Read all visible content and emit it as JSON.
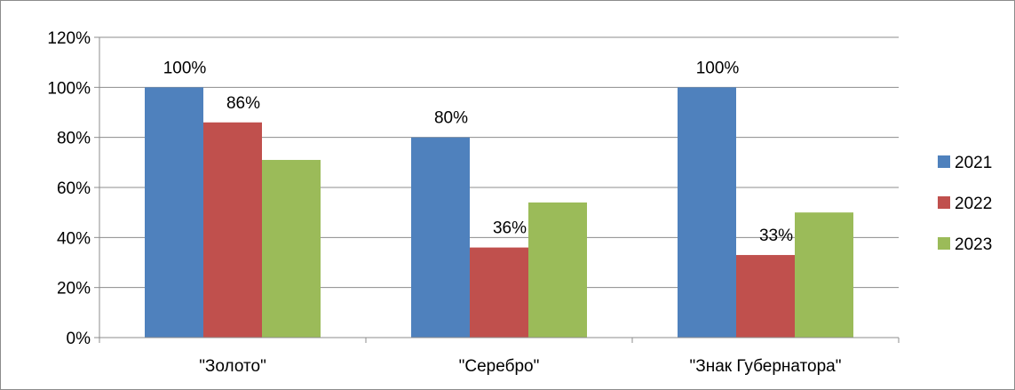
{
  "chart_data": {
    "type": "bar",
    "categories": [
      "\"Золото\"",
      "\"Серебро\"",
      "\"Знак Губернатора\""
    ],
    "series": [
      {
        "name": "2021",
        "values": [
          100,
          80,
          100
        ],
        "color": "#4F81BD",
        "labels": [
          "100%",
          "80%",
          "100%"
        ]
      },
      {
        "name": "2022",
        "values": [
          86,
          36,
          33
        ],
        "color": "#C0504D",
        "labels": [
          "86%",
          "36%",
          "33%"
        ]
      },
      {
        "name": "2023",
        "values": [
          71,
          54,
          50
        ],
        "color": "#9BBB59",
        "labels": [
          "",
          "",
          ""
        ]
      }
    ],
    "ylim": [
      0,
      120
    ],
    "yticks": [
      "0%",
      "20%",
      "40%",
      "60%",
      "80%",
      "100%",
      "120%"
    ],
    "ytick_values": [
      0,
      20,
      40,
      60,
      80,
      100,
      120
    ],
    "grid": true,
    "legend": "right"
  }
}
